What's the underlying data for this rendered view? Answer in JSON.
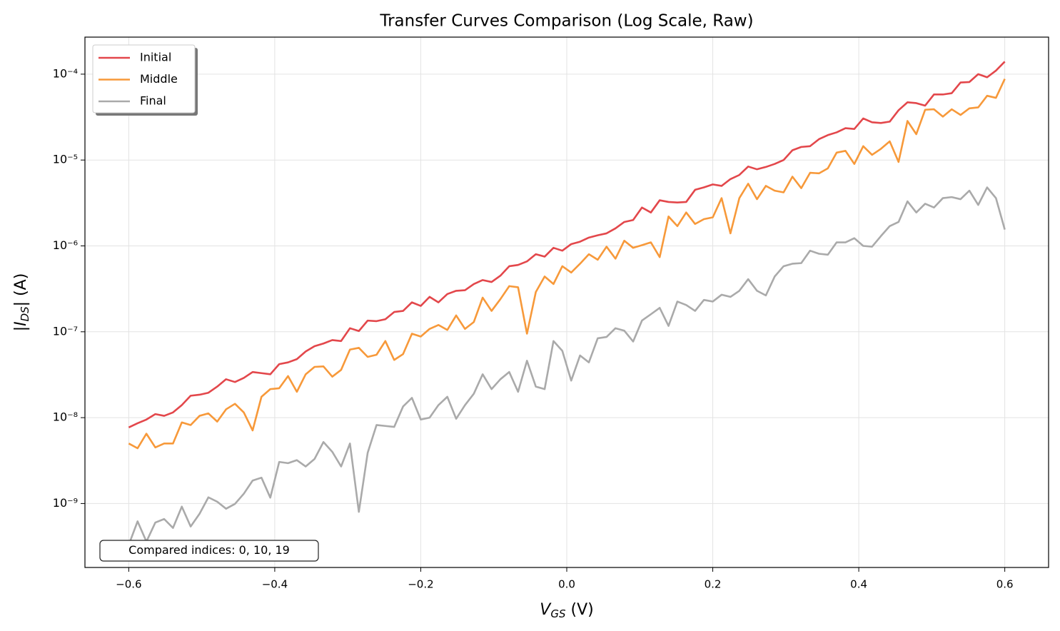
{
  "chart_data": {
    "type": "line",
    "title": "Transfer Curves Comparison (Log Scale, Raw)",
    "xlabel": {
      "main": "V",
      "sub": "GS",
      "rest": " (V)"
    },
    "ylabel": {
      "main": "|I",
      "sub": "DS",
      "rest": "| (A)"
    },
    "annotation": "Compared indices: 0, 10, 19",
    "log_y": true,
    "grid": true,
    "legend": "upper left",
    "xlim": [
      -0.66,
      0.66
    ],
    "ylim": [
      1.8e-10,
      0.00027
    ],
    "xticks": [
      {
        "value": -0.6,
        "label": "−0.6"
      },
      {
        "value": -0.4,
        "label": "−0.4"
      },
      {
        "value": -0.2,
        "label": "−0.2"
      },
      {
        "value": 0,
        "label": "0.0"
      },
      0.2,
      0.4,
      0.6
    ],
    "yticks": [
      {
        "value": 1e-09,
        "label": "10⁻⁹"
      },
      {
        "value": 1e-08,
        "label": "10⁻⁸"
      },
      {
        "value": 1e-07,
        "label": "10⁻⁷"
      },
      {
        "value": 1e-06,
        "label": "10⁻⁶"
      },
      {
        "value": 1e-05,
        "label": "10⁻⁵"
      },
      {
        "value": 0.0001,
        "label": "10⁻⁴"
      }
    ],
    "x": [
      -0.6,
      -0.5879,
      -0.5758,
      -0.5636,
      -0.5515,
      -0.5394,
      -0.5273,
      -0.5152,
      -0.503,
      -0.4909,
      -0.4788,
      -0.4667,
      -0.4545,
      -0.4424,
      -0.4303,
      -0.4182,
      -0.4061,
      -0.3939,
      -0.3818,
      -0.3697,
      -0.3576,
      -0.3455,
      -0.3333,
      -0.3212,
      -0.3091,
      -0.297,
      -0.2848,
      -0.2727,
      -0.2606,
      -0.2485,
      -0.2364,
      -0.2242,
      -0.2121,
      -0.2,
      -0.1879,
      -0.1758,
      -0.1636,
      -0.1515,
      -0.1394,
      -0.1273,
      -0.1152,
      -0.103,
      -0.0909,
      -0.0788,
      -0.0667,
      -0.0545,
      -0.0424,
      -0.0303,
      -0.0182,
      -0.0061,
      0.0061,
      0.0182,
      0.0303,
      0.0424,
      0.0545,
      0.0667,
      0.0788,
      0.0909,
      0.103,
      0.1152,
      0.1273,
      0.1394,
      0.1515,
      0.1636,
      0.1758,
      0.1879,
      0.2,
      0.2121,
      0.2242,
      0.2364,
      0.2485,
      0.2606,
      0.2727,
      0.2848,
      0.297,
      0.3091,
      0.3212,
      0.3333,
      0.3455,
      0.3576,
      0.3697,
      0.3818,
      0.3939,
      0.4061,
      0.4182,
      0.4303,
      0.4424,
      0.4545,
      0.4667,
      0.4788,
      0.4909,
      0.503,
      0.5152,
      0.5273,
      0.5394,
      0.5515,
      0.5636,
      0.5758,
      0.5879,
      0.6
    ],
    "series": [
      {
        "name": "Initial",
        "color": "#e3474b",
        "values": [
          7.7e-09,
          8.6e-09,
          9.5e-09,
          1.1e-08,
          1.05e-08,
          1.15e-08,
          1.4e-08,
          1.8e-08,
          1.85e-08,
          1.95e-08,
          2.3e-08,
          2.8e-08,
          2.6e-08,
          2.9e-08,
          3.4e-08,
          3.3e-08,
          3.2e-08,
          4.2e-08,
          4.4e-08,
          4.8e-08,
          5.9e-08,
          6.8e-08,
          7.3e-08,
          8e-08,
          7.8e-08,
          1.1e-07,
          1.02e-07,
          1.35e-07,
          1.33e-07,
          1.4e-07,
          1.7e-07,
          1.75e-07,
          2.2e-07,
          2e-07,
          2.55e-07,
          2.2e-07,
          2.75e-07,
          3e-07,
          3.05e-07,
          3.6e-07,
          4e-07,
          3.8e-07,
          4.5e-07,
          5.8e-07,
          6e-07,
          6.6e-07,
          8e-07,
          7.5e-07,
          9.5e-07,
          8.8e-07,
          1.05e-06,
          1.12e-06,
          1.25e-06,
          1.33e-06,
          1.4e-06,
          1.6e-06,
          1.9e-06,
          2e-06,
          2.8e-06,
          2.45e-06,
          3.4e-06,
          3.25e-06,
          3.2e-06,
          3.25e-06,
          4.5e-06,
          4.8e-06,
          5.2e-06,
          5e-06,
          6e-06,
          6.7e-06,
          8.4e-06,
          7.8e-06,
          8.3e-06,
          9e-06,
          1e-05,
          1.3e-05,
          1.42e-05,
          1.45e-05,
          1.75e-05,
          1.95e-05,
          2.1e-05,
          2.35e-05,
          2.3e-05,
          3.05e-05,
          2.75e-05,
          2.7e-05,
          2.8e-05,
          3.8e-05,
          4.7e-05,
          4.6e-05,
          4.3e-05,
          5.8e-05,
          5.8e-05,
          6e-05,
          8e-05,
          8.1e-05,
          0.0001,
          9.2e-05,
          0.00011,
          0.00014
        ]
      },
      {
        "name": "Middle",
        "color": "#f7993a",
        "values": [
          5e-09,
          4.4e-09,
          6.5e-09,
          4.5e-09,
          5e-09,
          5e-09,
          8.8e-09,
          8.2e-09,
          1.05e-08,
          1.12e-08,
          9e-09,
          1.25e-08,
          1.45e-08,
          1.15e-08,
          7.1e-09,
          1.75e-08,
          2.15e-08,
          2.2e-08,
          3.05e-08,
          2e-08,
          3.2e-08,
          3.9e-08,
          3.95e-08,
          3e-08,
          3.6e-08,
          6.2e-08,
          6.5e-08,
          5.1e-08,
          5.4e-08,
          7.8e-08,
          4.7e-08,
          5.5e-08,
          9.5e-08,
          8.8e-08,
          1.08e-07,
          1.2e-07,
          1.05e-07,
          1.55e-07,
          1.08e-07,
          1.3e-07,
          2.5e-07,
          1.75e-07,
          2.4e-07,
          3.4e-07,
          3.3e-07,
          9.5e-08,
          2.9e-07,
          4.4e-07,
          3.6e-07,
          5.8e-07,
          4.9e-07,
          6.2e-07,
          8e-07,
          6.9e-07,
          9.8e-07,
          7.1e-07,
          1.15e-06,
          9.5e-07,
          1.02e-06,
          1.1e-06,
          7.4e-07,
          2.2e-06,
          1.7e-06,
          2.45e-06,
          1.8e-06,
          2.05e-06,
          2.15e-06,
          3.6e-06,
          1.4e-06,
          3.6e-06,
          5.3e-06,
          3.5e-06,
          5e-06,
          4.4e-06,
          4.2e-06,
          6.4e-06,
          4.7e-06,
          7.1e-06,
          7e-06,
          8e-06,
          1.22e-05,
          1.28e-05,
          9e-06,
          1.45e-05,
          1.15e-05,
          1.35e-05,
          1.65e-05,
          9.5e-06,
          2.85e-05,
          2e-05,
          3.85e-05,
          3.9e-05,
          3.2e-05,
          3.9e-05,
          3.35e-05,
          4e-05,
          4.1e-05,
          5.6e-05,
          5.3e-05,
          8.8e-05
        ]
      },
      {
        "name": "Final",
        "color": "#aaaaaa",
        "values": [
          3.3e-10,
          6.2e-10,
          3.6e-10,
          6e-10,
          6.6e-10,
          5.2e-10,
          9.2e-10,
          5.4e-10,
          7.6e-10,
          1.18e-09,
          1.05e-09,
          8.7e-10,
          9.9e-10,
          1.3e-09,
          1.85e-09,
          2e-09,
          1.17e-09,
          3.05e-09,
          2.95e-09,
          3.2e-09,
          2.7e-09,
          3.3e-09,
          5.2e-09,
          4e-09,
          2.7e-09,
          5e-09,
          8e-10,
          3.9e-09,
          8.2e-09,
          8e-09,
          7.8e-09,
          1.35e-08,
          1.7e-08,
          9.5e-09,
          1e-08,
          1.4e-08,
          1.75e-08,
          9.7e-09,
          1.4e-08,
          1.9e-08,
          3.2e-08,
          2.15e-08,
          2.8e-08,
          3.4e-08,
          2e-08,
          4.6e-08,
          2.3e-08,
          2.15e-08,
          7.8e-08,
          6e-08,
          2.7e-08,
          5.3e-08,
          4.4e-08,
          8.4e-08,
          8.7e-08,
          1.1e-07,
          1.03e-07,
          7.7e-08,
          1.35e-07,
          1.6e-07,
          1.9e-07,
          1.17e-07,
          2.25e-07,
          2.05e-07,
          1.75e-07,
          2.35e-07,
          2.25e-07,
          2.7e-07,
          2.55e-07,
          3e-07,
          4.1e-07,
          3e-07,
          2.65e-07,
          4.4e-07,
          5.8e-07,
          6.2e-07,
          6.3e-07,
          8.8e-07,
          8.1e-07,
          7.9e-07,
          1.1e-06,
          1.1e-06,
          1.23e-06,
          1e-06,
          9.8e-07,
          1.3e-06,
          1.7e-06,
          1.9e-06,
          3.3e-06,
          2.45e-06,
          3.1e-06,
          2.8e-06,
          3.6e-06,
          3.7e-06,
          3.5e-06,
          4.4e-06,
          3e-06,
          4.8e-06,
          3.6e-06,
          1.55e-06
        ]
      }
    ]
  }
}
